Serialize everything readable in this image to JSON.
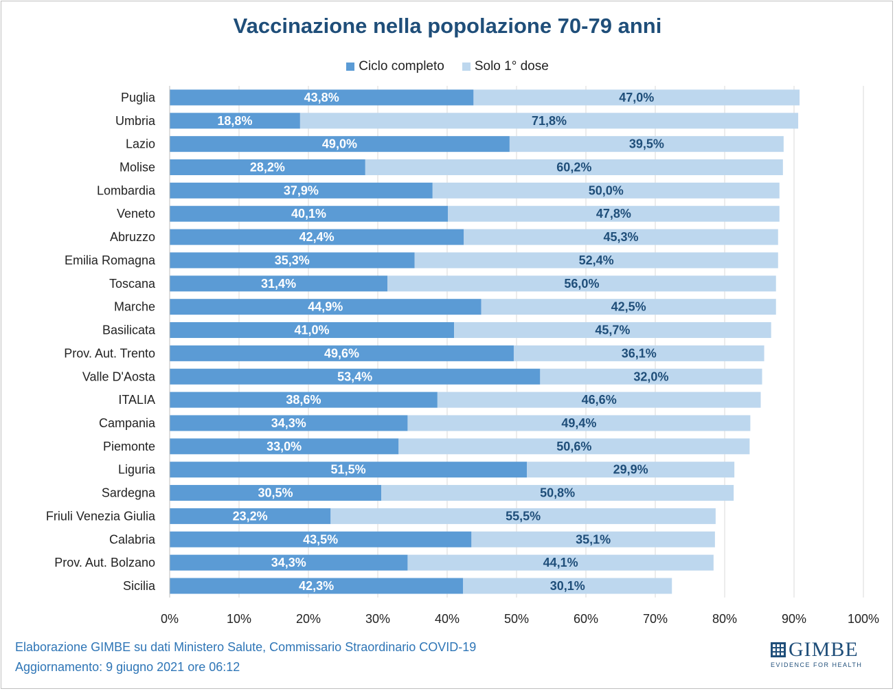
{
  "colors": {
    "complete": "#5b9bd5",
    "first_dose": "#bdd7ee",
    "title": "#1f4e79",
    "label_dark": "#1f4e79",
    "grid": "#d9d9d9"
  },
  "chart_data": {
    "type": "bar",
    "orientation": "horizontal",
    "stacked": true,
    "title": "Vaccinazione nella popolazione 70-79 anni",
    "legend_position": "top",
    "grid": true,
    "xlim": [
      0,
      100
    ],
    "x_ticks": [
      "0%",
      "10%",
      "20%",
      "30%",
      "40%",
      "50%",
      "60%",
      "70%",
      "80%",
      "90%",
      "100%"
    ],
    "categories": [
      "Puglia",
      "Umbria",
      "Lazio",
      "Molise",
      "Lombardia",
      "Veneto",
      "Abruzzo",
      "Emilia Romagna",
      "Toscana",
      "Marche",
      "Basilicata",
      "Prov. Aut. Trento",
      "Valle D'Aosta",
      "ITALIA",
      "Campania",
      "Piemonte",
      "Liguria",
      "Sardegna",
      "Friuli Venezia Giulia",
      "Calabria",
      "Prov. Aut. Bolzano",
      "Sicilia"
    ],
    "series": [
      {
        "name": "Ciclo completo",
        "values": [
          43.8,
          18.8,
          49.0,
          28.2,
          37.9,
          40.1,
          42.4,
          35.3,
          31.4,
          44.9,
          41.0,
          49.6,
          53.4,
          38.6,
          34.3,
          33.0,
          51.5,
          30.5,
          23.2,
          43.5,
          34.3,
          42.3
        ],
        "labels": [
          "43,8%",
          "18,8%",
          "49,0%",
          "28,2%",
          "37,9%",
          "40,1%",
          "42,4%",
          "35,3%",
          "31,4%",
          "44,9%",
          "41,0%",
          "49,6%",
          "53,4%",
          "38,6%",
          "34,3%",
          "33,0%",
          "51,5%",
          "30,5%",
          "23,2%",
          "43,5%",
          "34,3%",
          "42,3%"
        ]
      },
      {
        "name": "Solo 1° dose",
        "values": [
          47.0,
          71.8,
          39.5,
          60.2,
          50.0,
          47.8,
          45.3,
          52.4,
          56.0,
          42.5,
          45.7,
          36.1,
          32.0,
          46.6,
          49.4,
          50.6,
          29.9,
          50.8,
          55.5,
          35.1,
          44.1,
          30.1
        ],
        "labels": [
          "47,0%",
          "71,8%",
          "39,5%",
          "60,2%",
          "50,0%",
          "47,8%",
          "45,3%",
          "52,4%",
          "56,0%",
          "42,5%",
          "45,7%",
          "36,1%",
          "32,0%",
          "46,6%",
          "49,4%",
          "50,6%",
          "29,9%",
          "50,8%",
          "55,5%",
          "35,1%",
          "44,1%",
          "30,1%"
        ]
      }
    ]
  },
  "footer": {
    "line1": "Elaborazione GIMBE su dati Ministero Salute, Commissario Straordinario COVID-19",
    "line2": "Aggiornamento: 9 giugno 2021 ore 06:12"
  },
  "logo": {
    "name": "GIMBE",
    "tagline": "EVIDENCE FOR HEALTH"
  }
}
